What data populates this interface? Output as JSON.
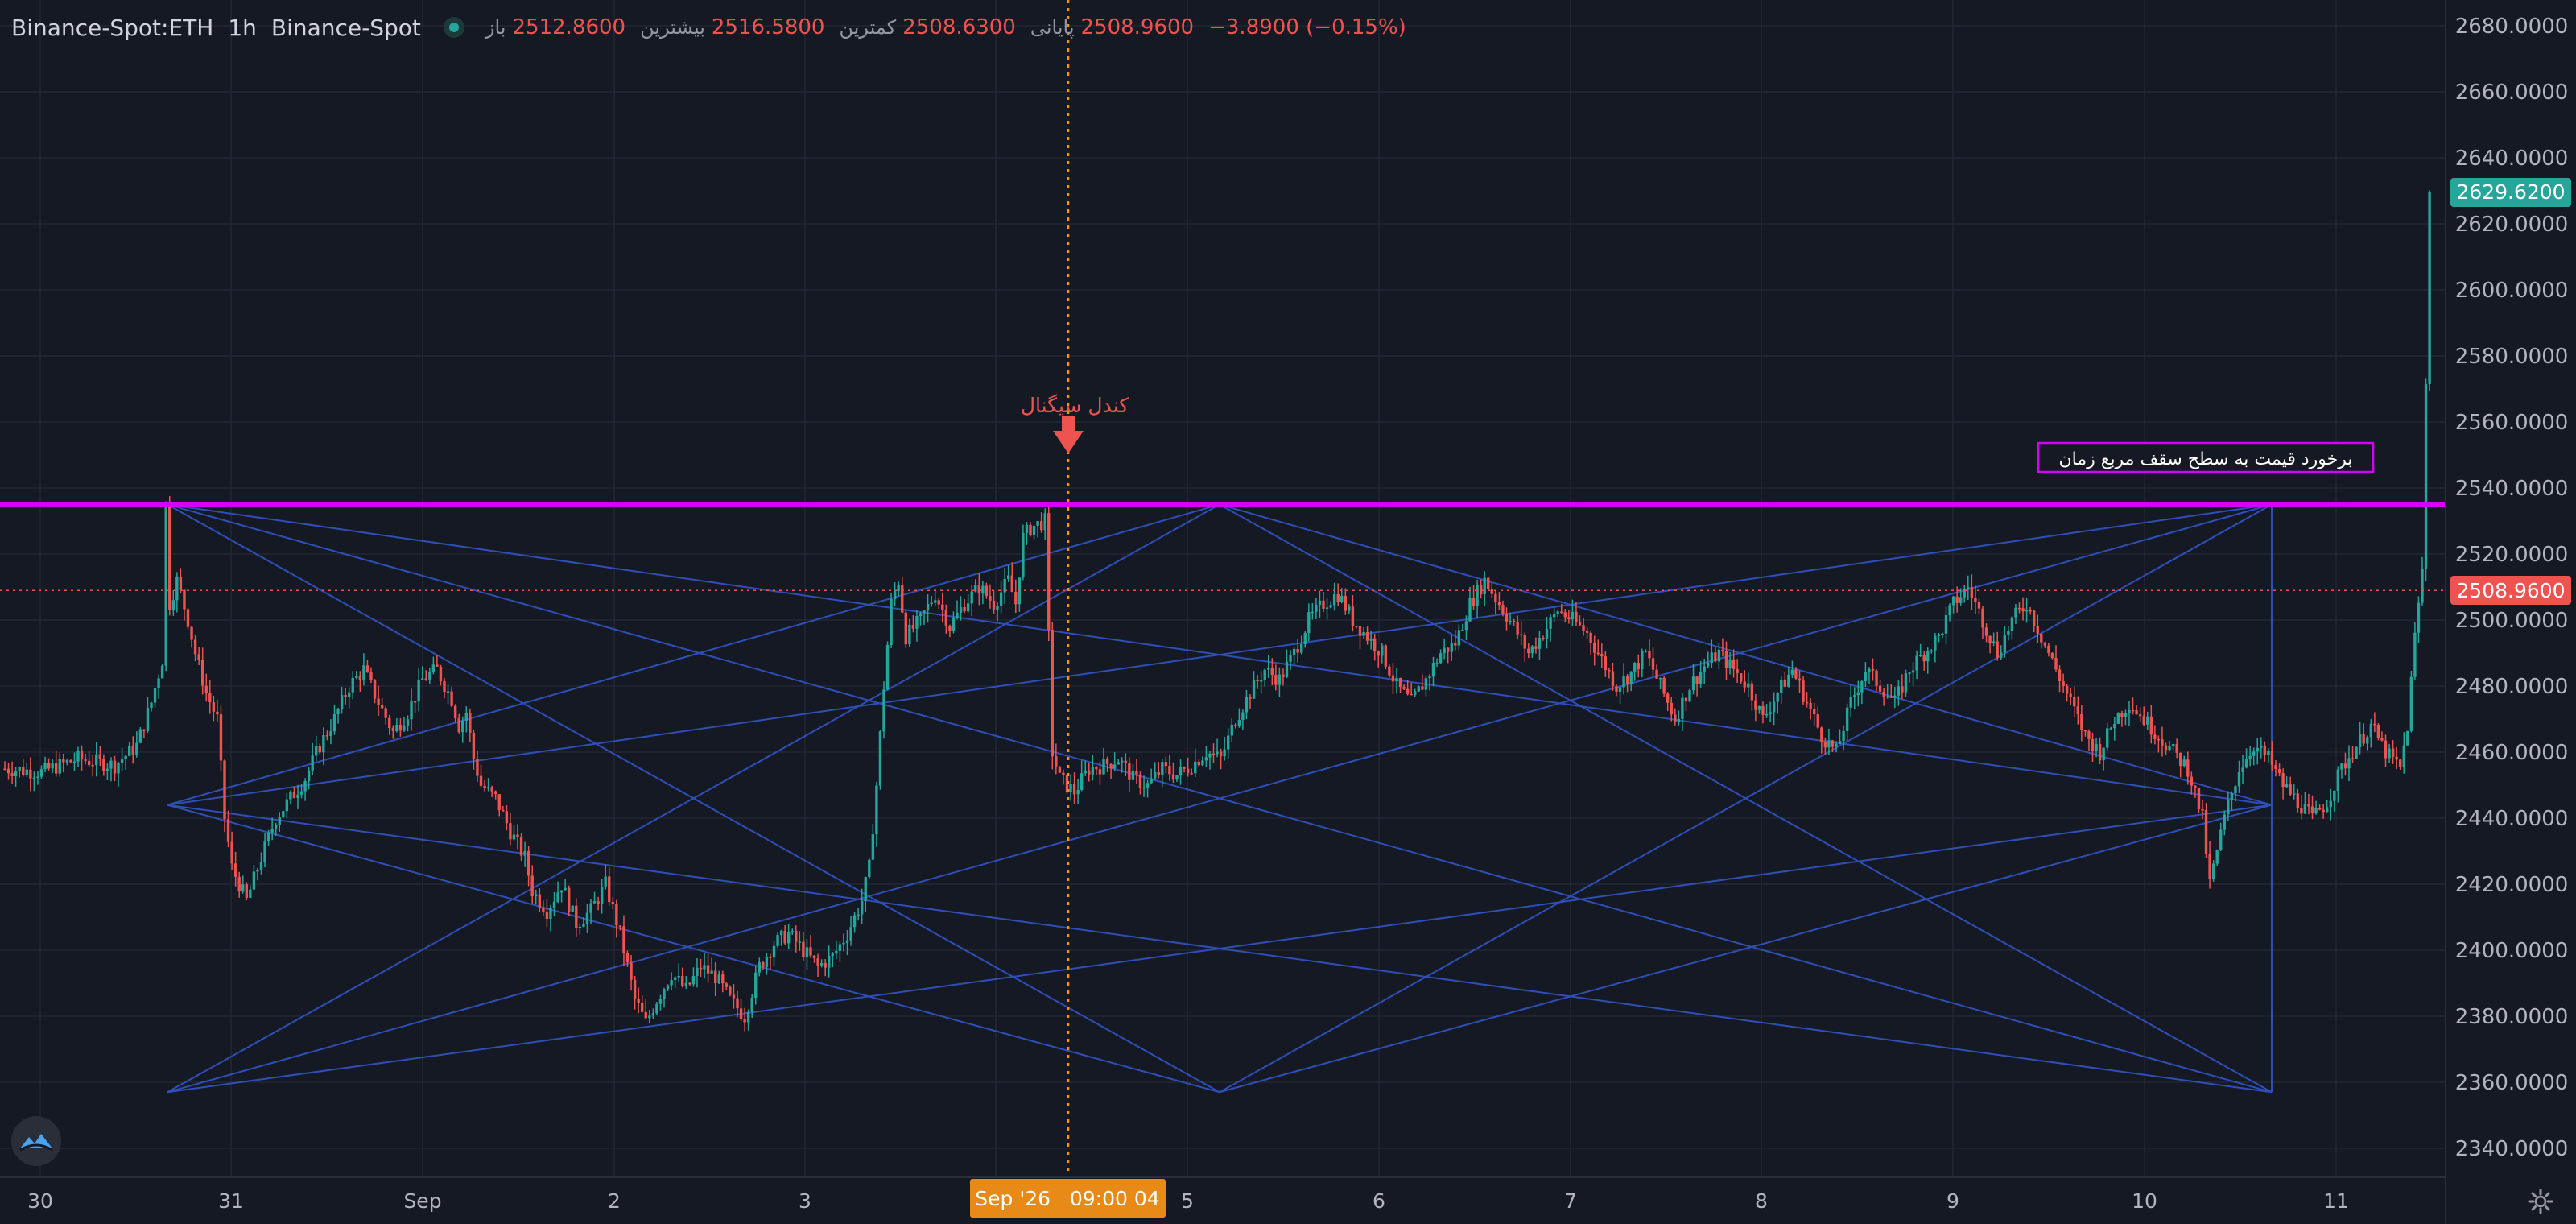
{
  "header": {
    "symbol": "Binance-Spot:ETH",
    "interval": "1h",
    "exchange": "Binance-Spot",
    "open_label": "باز",
    "open_value": "2512.8600",
    "high_label": "بیشترین",
    "high_value": "2516.5800",
    "low_label": "کمترین",
    "low_value": "2508.6300",
    "close_label": "پایانی",
    "close_value": "2508.9600",
    "change": "−3.8900 (−0.15%)"
  },
  "colors": {
    "background": "#151924",
    "up": "#26a69a",
    "down": "#ef5350",
    "pattern_lines": "#2f4fb8",
    "resistance": "#d500f9",
    "crosshair": "#f7931a"
  },
  "annotations": {
    "signal_label": "کندل سیگنال",
    "resistance_label": "برخورد قیمت به سطح سقف مربع زمان"
  },
  "price_tags": {
    "last": "2629.6200",
    "current": "2508.9600"
  },
  "crosshair_time": "Sep '26   09:00 04",
  "icons": {
    "logo": "logo-icon",
    "settings": "gear-icon"
  },
  "chart_data": {
    "type": "candlestick",
    "timeframe": "1h",
    "yaxis_ticks": [
      "2340.0000",
      "2360.0000",
      "2380.0000",
      "2400.0000",
      "2420.0000",
      "2440.0000",
      "2460.0000",
      "2480.0000",
      "2500.0000",
      "2520.0000",
      "2540.0000",
      "2560.0000",
      "2580.0000",
      "2600.0000",
      "2620.0000",
      "2640.0000",
      "2660.0000",
      "2680.0000"
    ],
    "ylim": [
      2328,
      2685
    ],
    "xaxis_ticks": [
      "30",
      "31",
      "Sep",
      "2",
      "3",
      "4",
      "5",
      "6",
      "7",
      "8",
      "9",
      "10",
      "11"
    ],
    "resistance_level": 2535,
    "current_price": 2508.96,
    "last_price": 2629.62,
    "price_path": [
      [
        0,
        2455
      ],
      [
        10,
        2454
      ],
      [
        20,
        2458
      ],
      [
        30,
        2456
      ],
      [
        36,
        2462
      ],
      [
        40,
        2475
      ],
      [
        43,
        2488
      ],
      [
        44,
        2535
      ],
      [
        45,
        2505
      ],
      [
        47,
        2512
      ],
      [
        50,
        2500
      ],
      [
        52,
        2490
      ],
      [
        55,
        2478
      ],
      [
        58,
        2470
      ],
      [
        60,
        2440
      ],
      [
        62,
        2425
      ],
      [
        66,
        2415
      ],
      [
        70,
        2428
      ],
      [
        74,
        2440
      ],
      [
        78,
        2446
      ],
      [
        82,
        2452
      ],
      [
        86,
        2462
      ],
      [
        90,
        2470
      ],
      [
        94,
        2480
      ],
      [
        98,
        2485
      ],
      [
        102,
        2475
      ],
      [
        106,
        2466
      ],
      [
        110,
        2472
      ],
      [
        114,
        2482
      ],
      [
        118,
        2485
      ],
      [
        122,
        2476
      ],
      [
        124,
        2468
      ],
      [
        126,
        2472
      ],
      [
        128,
        2458
      ],
      [
        130,
        2450
      ],
      [
        134,
        2446
      ],
      [
        138,
        2436
      ],
      [
        142,
        2428
      ],
      [
        144,
        2418
      ],
      [
        148,
        2412
      ],
      [
        152,
        2420
      ],
      [
        156,
        2408
      ],
      [
        160,
        2412
      ],
      [
        164,
        2420
      ],
      [
        168,
        2405
      ],
      [
        172,
        2385
      ],
      [
        175,
        2378
      ],
      [
        178,
        2385
      ],
      [
        182,
        2393
      ],
      [
        186,
        2388
      ],
      [
        190,
        2395
      ],
      [
        194,
        2392
      ],
      [
        198,
        2385
      ],
      [
        202,
        2380
      ],
      [
        206,
        2395
      ],
      [
        210,
        2402
      ],
      [
        214,
        2405
      ],
      [
        218,
        2400
      ],
      [
        222,
        2395
      ],
      [
        226,
        2398
      ],
      [
        230,
        2405
      ],
      [
        234,
        2415
      ],
      [
        236,
        2425
      ],
      [
        238,
        2450
      ],
      [
        240,
        2480
      ],
      [
        242,
        2505
      ],
      [
        244,
        2512
      ],
      [
        246,
        2495
      ],
      [
        250,
        2500
      ],
      [
        254,
        2508
      ],
      [
        258,
        2498
      ],
      [
        262,
        2505
      ],
      [
        266,
        2510
      ],
      [
        270,
        2505
      ],
      [
        274,
        2512
      ],
      [
        276,
        2505
      ],
      [
        278,
        2525
      ],
      [
        280,
        2528
      ],
      [
        284,
        2530
      ],
      [
        286,
        2460
      ],
      [
        288,
        2452
      ],
      [
        292,
        2448
      ],
      [
        296,
        2455
      ],
      [
        300,
        2456
      ],
      [
        304,
        2458
      ],
      [
        308,
        2452
      ],
      [
        312,
        2450
      ],
      [
        316,
        2455
      ],
      [
        320,
        2453
      ],
      [
        324,
        2456
      ],
      [
        328,
        2460
      ],
      [
        332,
        2458
      ],
      [
        336,
        2470
      ],
      [
        340,
        2478
      ],
      [
        344,
        2485
      ],
      [
        348,
        2482
      ],
      [
        352,
        2490
      ],
      [
        356,
        2500
      ],
      [
        360,
        2505
      ],
      [
        364,
        2508
      ],
      [
        368,
        2500
      ],
      [
        372,
        2495
      ],
      [
        376,
        2490
      ],
      [
        380,
        2480
      ],
      [
        384,
        2475
      ],
      [
        388,
        2482
      ],
      [
        392,
        2490
      ],
      [
        396,
        2493
      ],
      [
        400,
        2505
      ],
      [
        404,
        2512
      ],
      [
        408,
        2505
      ],
      [
        412,
        2498
      ],
      [
        416,
        2490
      ],
      [
        420,
        2496
      ],
      [
        424,
        2503
      ],
      [
        428,
        2500
      ],
      [
        432,
        2496
      ],
      [
        436,
        2488
      ],
      [
        440,
        2480
      ],
      [
        444,
        2484
      ],
      [
        448,
        2490
      ],
      [
        452,
        2480
      ],
      [
        456,
        2470
      ],
      [
        460,
        2480
      ],
      [
        464,
        2486
      ],
      [
        468,
        2490
      ],
      [
        472,
        2485
      ],
      [
        476,
        2480
      ],
      [
        480,
        2470
      ],
      [
        484,
        2478
      ],
      [
        488,
        2485
      ],
      [
        492,
        2475
      ],
      [
        496,
        2465
      ],
      [
        500,
        2460
      ],
      [
        504,
        2475
      ],
      [
        508,
        2485
      ],
      [
        512,
        2480
      ],
      [
        516,
        2475
      ],
      [
        520,
        2485
      ],
      [
        524,
        2490
      ],
      [
        528,
        2495
      ],
      [
        532,
        2505
      ],
      [
        536,
        2510
      ],
      [
        540,
        2500
      ],
      [
        544,
        2490
      ],
      [
        548,
        2500
      ],
      [
        552,
        2505
      ],
      [
        556,
        2495
      ],
      [
        560,
        2485
      ],
      [
        564,
        2475
      ],
      [
        568,
        2465
      ],
      [
        572,
        2460
      ],
      [
        576,
        2470
      ],
      [
        580,
        2475
      ],
      [
        584,
        2470
      ],
      [
        588,
        2465
      ],
      [
        592,
        2460
      ],
      [
        596,
        2455
      ],
      [
        600,
        2440
      ],
      [
        602,
        2420
      ],
      [
        606,
        2440
      ],
      [
        610,
        2455
      ],
      [
        614,
        2462
      ],
      [
        618,
        2458
      ],
      [
        622,
        2450
      ],
      [
        626,
        2445
      ],
      [
        630,
        2440
      ],
      [
        634,
        2445
      ],
      [
        638,
        2455
      ],
      [
        642,
        2462
      ],
      [
        646,
        2468
      ],
      [
        650,
        2460
      ],
      [
        654,
        2455
      ],
      [
        656,
        2468
      ],
      [
        658,
        2495
      ],
      [
        660,
        2515
      ],
      [
        662,
        2629.62
      ]
    ]
  }
}
